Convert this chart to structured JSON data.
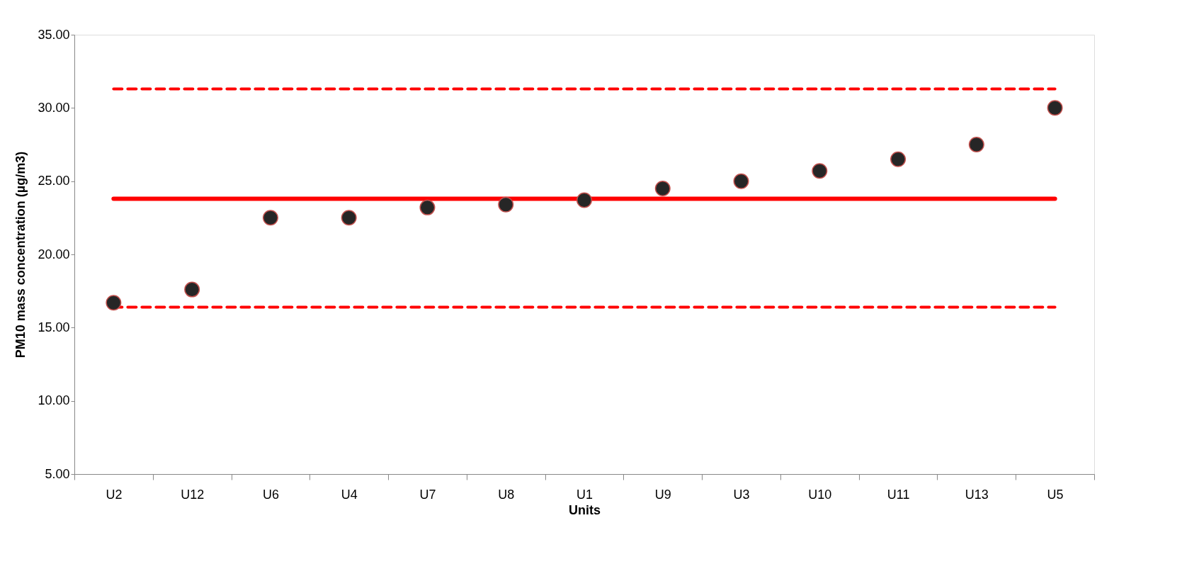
{
  "chart_data": {
    "type": "scatter",
    "xlabel": "Units",
    "ylabel": "PM10 mass concentration (µg/m3)",
    "categories": [
      "U2",
      "U12",
      "U6",
      "U4",
      "U7",
      "U8",
      "U1",
      "U9",
      "U3",
      "U10",
      "U11",
      "U13",
      "U5"
    ],
    "series": [
      {
        "color": "#262626",
        "values": [
          16.7,
          17.6,
          22.5,
          22.5,
          23.2,
          23.4,
          23.7,
          24.5,
          25.0,
          25.7,
          26.5,
          27.5,
          30.0
        ]
      }
    ],
    "ylim": [
      5,
      35
    ],
    "yticks": [
      {
        "value": 5,
        "label": "5.00"
      },
      {
        "value": 10,
        "label": "10.00"
      },
      {
        "value": 15,
        "label": "15.00"
      },
      {
        "value": 20,
        "label": "20.00"
      },
      {
        "value": 25,
        "label": "25.00"
      },
      {
        "value": 30,
        "label": "30.00"
      },
      {
        "value": 35,
        "label": "35.00"
      }
    ],
    "ref_lines": [
      {
        "axis": "y",
        "value": 31.3,
        "color": "#ff0000",
        "line_style": "dashed"
      },
      {
        "axis": "y",
        "value": 23.8,
        "color": "#ff0000",
        "line_style": "solid"
      },
      {
        "axis": "y",
        "value": 16.4,
        "color": "#ff0000",
        "line_style": "dashed"
      }
    ],
    "marker": "circle",
    "grid": false
  }
}
